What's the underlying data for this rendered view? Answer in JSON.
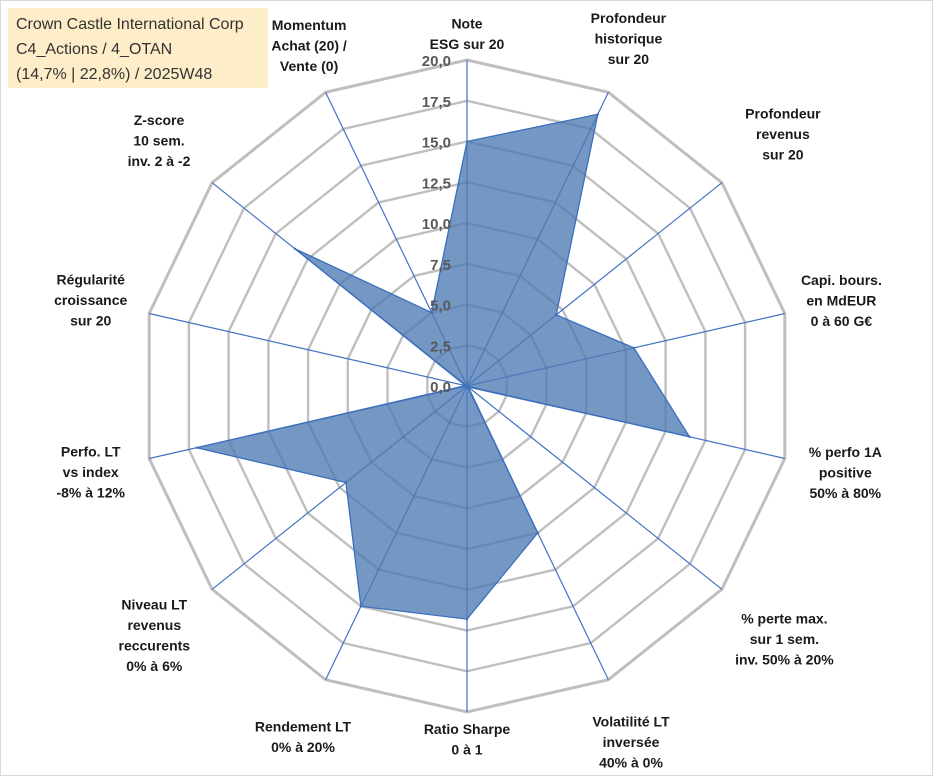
{
  "info": {
    "company": "Crown Castle International Corp",
    "classification": "C4_Actions / 4_OTAN",
    "stats": "(14,7% | 22,8%) / 2025W48"
  },
  "colors": {
    "fill": "#4d7ab3",
    "stroke": "#3a6fbd",
    "grid": "#bfbfbf",
    "spoke": "#4472c4",
    "info_bg": "#fde9bc"
  },
  "chart_data": {
    "type": "radar",
    "range": [
      0,
      20
    ],
    "ticks": [
      "0,0",
      "2,5",
      "5,0",
      "7,5",
      "10,0",
      "12,5",
      "15,0",
      "17,5",
      "20,0"
    ],
    "tick_values": [
      0,
      2.5,
      5,
      7.5,
      10,
      12.5,
      15,
      17.5,
      20
    ],
    "axes": [
      {
        "label": [
          "Note",
          "ESG sur 20"
        ],
        "value": 15.0
      },
      {
        "label": [
          "Profondeur",
          "historique",
          "sur 20"
        ],
        "value": 18.5
      },
      {
        "label": [
          "Profondeur",
          "revenus",
          "sur 20"
        ],
        "value": 7.0
      },
      {
        "label": [
          "Capi. bours.",
          "en MdEUR",
          "0 à 60 G€"
        ],
        "value": 10.5
      },
      {
        "label": [
          "% perfo 1A",
          "positive",
          "50% à 80%"
        ],
        "value": 14.0
      },
      {
        "label": [
          "% perte max.",
          "sur 1 sem.",
          "inv. 50% à 20%"
        ],
        "value": 0.1
      },
      {
        "label": [
          "Volatilité LT",
          "inversée",
          "40% à 0%"
        ],
        "value": 10.0
      },
      {
        "label": [
          "Ratio Sharpe",
          "0 à 1"
        ],
        "value": 14.3
      },
      {
        "label": [
          "Rendement LT",
          "0% à 20%"
        ],
        "value": 15.0
      },
      {
        "label": [
          "Niveau LT",
          "revenus",
          "reccurents",
          "0% à 6%"
        ],
        "value": 9.5
      },
      {
        "label": [
          "Perfo. LT",
          "vs index",
          "-8% à 12%"
        ],
        "value": 17.0
      },
      {
        "label": [
          "Régularité",
          "croissance",
          "sur 20"
        ],
        "value": 0.1
      },
      {
        "label": [
          "Z-score",
          "10 sem.",
          "inv. 2 à -2"
        ],
        "value": 13.5
      },
      {
        "label": [
          "Momentum",
          "Achat (20) /",
          "Vente (0)"
        ],
        "value": 5.0
      }
    ]
  }
}
